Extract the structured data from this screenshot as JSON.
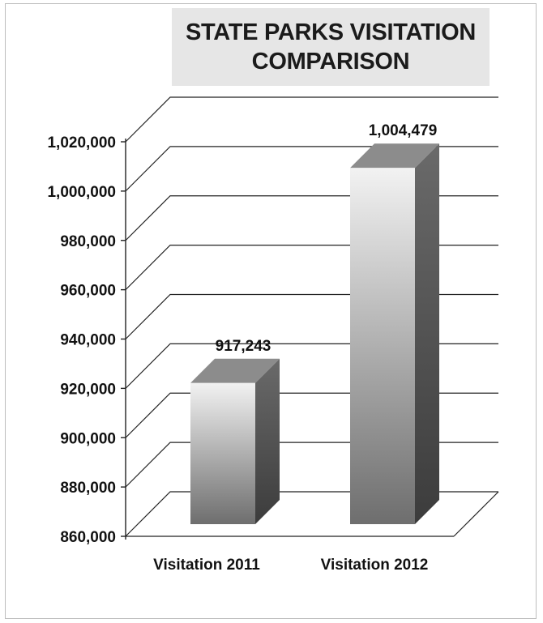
{
  "chart_data": {
    "type": "bar",
    "title": "STATE PARKS VISITATION COMPARISON",
    "title_lines": [
      "STATE PARKS VISITATION",
      "COMPARISON"
    ],
    "categories": [
      "Visitation 2011",
      "Visitation 2012"
    ],
    "values": [
      917243,
      1004479
    ],
    "data_labels": [
      "917,243",
      "1,004,479"
    ],
    "xlabel": "",
    "ylabel": "",
    "ylim": [
      860000,
      1020000
    ],
    "yticks": [
      860000,
      880000,
      900000,
      920000,
      940000,
      960000,
      980000,
      1000000,
      1020000
    ],
    "ytick_labels": [
      "860,000",
      "880,000",
      "900,000",
      "920,000",
      "940,000",
      "960,000",
      "980,000",
      "1,000,000",
      "1,020,000"
    ],
    "grid": true,
    "legend": "none",
    "style": "3d-column"
  }
}
